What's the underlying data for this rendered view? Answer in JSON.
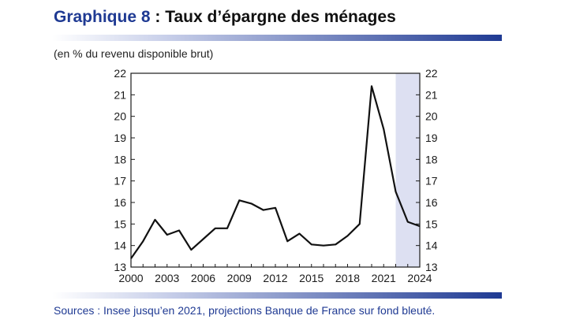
{
  "header": {
    "title_prefix": "Graphique 8",
    "title_separator": " : ",
    "title": "Taux d’épargne des ménages",
    "units": "(en % du revenu disponible brut)"
  },
  "footer": {
    "source": "Sources : Insee jusqu’en 2021, projections Banque de France sur fond bleuté."
  },
  "colors": {
    "brand_blue": "#1f3a93",
    "projection_shade": "#dde0f2",
    "line": "#111111"
  },
  "chart_data": {
    "type": "line",
    "title": "Taux d’épargne des ménages",
    "xlabel": "",
    "ylabel": "(en % du revenu disponible brut)",
    "xlim": [
      2000,
      2024
    ],
    "ylim": [
      13,
      22
    ],
    "x_ticks": [
      2000,
      2003,
      2006,
      2009,
      2012,
      2015,
      2018,
      2021,
      2024
    ],
    "x_tick_labels": [
      "2000",
      "2003",
      "2006",
      "2009",
      "2012",
      "2015",
      "2018",
      "2021",
      "2024"
    ],
    "y_ticks": [
      13,
      14,
      15,
      16,
      17,
      18,
      19,
      20,
      21,
      22
    ],
    "y_tick_labels": [
      "13",
      "14",
      "15",
      "16",
      "17",
      "18",
      "19",
      "20",
      "21",
      "22"
    ],
    "y_axis_right": true,
    "grid": false,
    "projection_range": [
      2022,
      2024
    ],
    "series": [
      {
        "x": [
          2000,
          2001,
          2002,
          2003,
          2004,
          2005,
          2006,
          2007,
          2008,
          2009,
          2010,
          2011,
          2012,
          2013,
          2014,
          2015,
          2016,
          2017,
          2018,
          2019,
          2020,
          2021,
          2022,
          2023,
          2024
        ],
        "values": [
          13.4,
          14.2,
          15.2,
          14.5,
          14.7,
          13.8,
          14.3,
          14.8,
          14.8,
          16.1,
          15.95,
          15.65,
          15.75,
          14.2,
          14.55,
          14.05,
          14.0,
          14.05,
          14.45,
          15.0,
          21.4,
          19.4,
          16.5,
          15.1,
          14.9
        ]
      }
    ]
  }
}
